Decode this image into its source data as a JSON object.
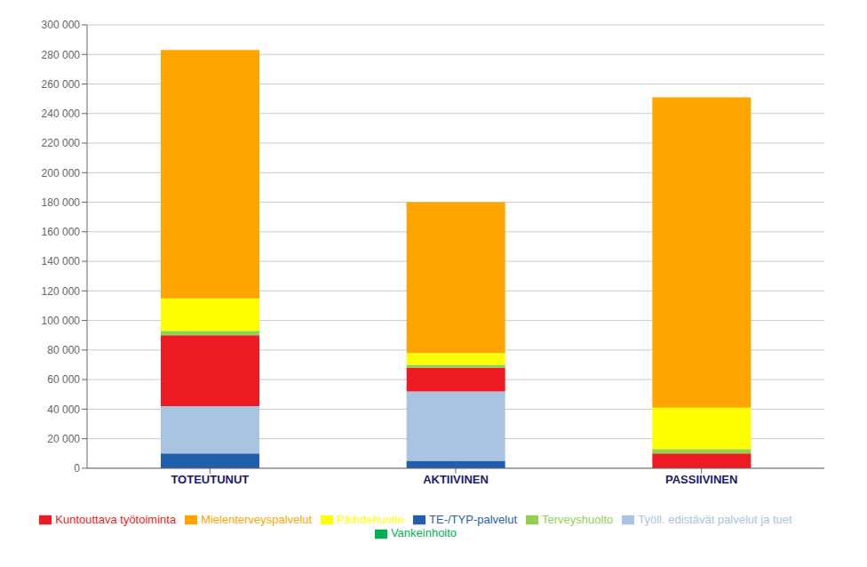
{
  "chart_data": {
    "type": "bar",
    "stacked": true,
    "categories": [
      "TOTEUTUNUT",
      "AKTIIVINEN",
      "PASSIIVINEN"
    ],
    "series": [
      {
        "name": "TE-/TYP-palvelut",
        "color": "#1F5FAD",
        "values": [
          10000,
          5000,
          0
        ]
      },
      {
        "name": "Työll. edistävät palvelut ja tuet",
        "color": "#A8C4E0",
        "values": [
          32000,
          47000,
          0
        ]
      },
      {
        "name": "Kuntouttava työtoiminta",
        "color": "#ED1C24",
        "values": [
          48000,
          16000,
          10000
        ]
      },
      {
        "name": "Terveyshuolto",
        "color": "#92D050",
        "values": [
          3000,
          2000,
          3000
        ]
      },
      {
        "name": "Päihdehuolto",
        "color": "#FFFF00",
        "values": [
          22000,
          8000,
          28000
        ]
      },
      {
        "name": "Mielenterveyspalvelut",
        "color": "#FFA500",
        "values": [
          168000,
          102000,
          210000
        ]
      },
      {
        "name": "Vankeinhoito",
        "color": "#00B050",
        "values": [
          0,
          0,
          0
        ]
      }
    ],
    "ylim": [
      0,
      300000
    ],
    "yticks": [
      0,
      {
        "value": 20000,
        "label": "20 000"
      },
      {
        "value": 40000,
        "label": "40 000"
      },
      {
        "value": 60000,
        "label": "60 000"
      },
      {
        "value": 80000,
        "label": "80 000"
      },
      {
        "value": 100000,
        "label": "100 000"
      },
      {
        "value": 120000,
        "label": "120 000"
      },
      {
        "value": 140000,
        "label": "140 000"
      },
      {
        "value": 160000,
        "label": "160 000"
      },
      {
        "value": 180000,
        "label": "180 000"
      },
      {
        "value": 200000,
        "label": "200 000"
      },
      {
        "value": 220000,
        "label": "220 000"
      },
      {
        "value": 240000,
        "label": "240 000"
      },
      {
        "value": 260000,
        "label": "260 000"
      },
      {
        "value": 280000,
        "label": "280 000"
      },
      {
        "value": 300000,
        "label": "300 000"
      }
    ],
    "grid": true,
    "legend": "bottom"
  }
}
